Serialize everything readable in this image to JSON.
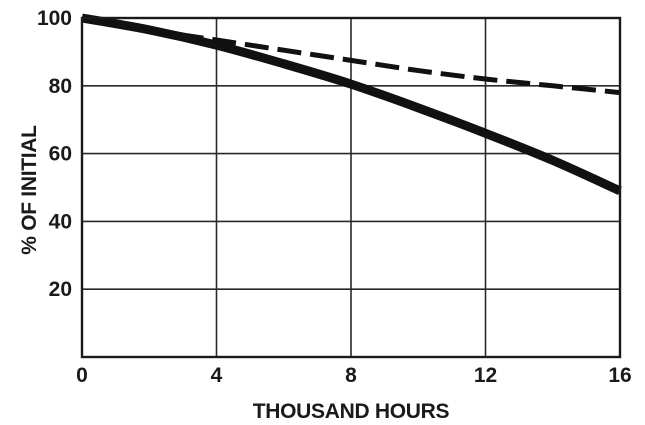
{
  "chart_data": {
    "type": "line",
    "xlabel": "THOUSAND HOURS",
    "ylabel": "% OF INITIAL",
    "xlim": [
      0,
      16
    ],
    "ylim": [
      0,
      100
    ],
    "x_ticks": [
      0,
      4,
      8,
      12,
      16
    ],
    "x_tick_labels": [
      "0",
      "4",
      "8",
      "12",
      "16"
    ],
    "y_ticks": [
      20,
      40,
      60,
      80,
      100
    ],
    "y_tick_labels": [
      "20",
      "40",
      "60",
      "80",
      "100"
    ],
    "grid": true,
    "legend": "none",
    "series": [
      {
        "style": "solid-thick",
        "color": "#111111",
        "x": [
          0,
          2,
          4,
          6,
          8,
          10,
          12,
          14,
          16
        ],
        "y": [
          100,
          96.5,
          92,
          86.5,
          80.5,
          73.5,
          66,
          58,
          49
        ]
      },
      {
        "style": "dashed",
        "color": "#111111",
        "x": [
          0,
          2,
          4,
          6,
          8,
          10,
          12,
          14,
          16
        ],
        "y": [
          100,
          96.5,
          93.5,
          90.5,
          87.5,
          84.5,
          82,
          80,
          78
        ]
      }
    ]
  }
}
